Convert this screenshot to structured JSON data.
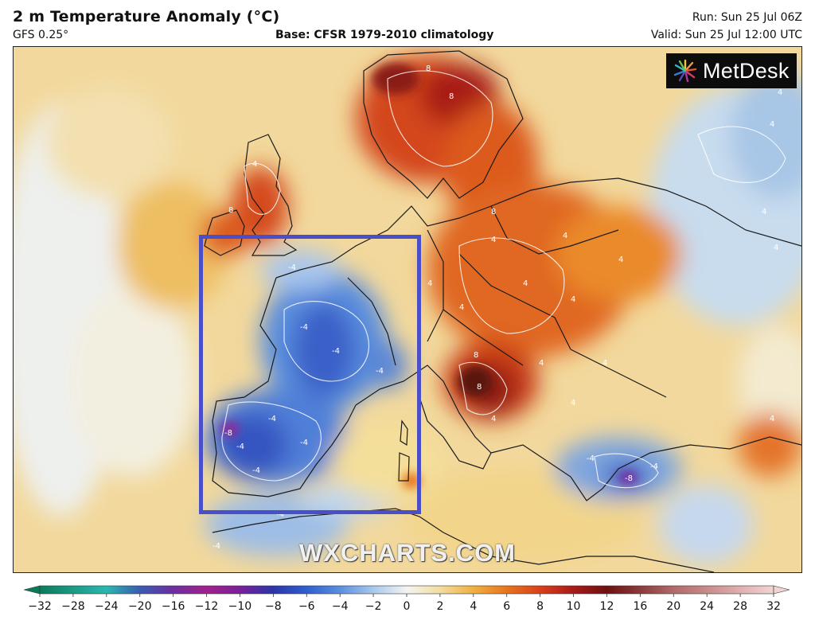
{
  "header": {
    "title": "2 m Temperature Anomaly (°C)",
    "model": "GFS 0.25°",
    "base": "Base: CFSR 1979-2010 climatology",
    "run": "Run: Sun 25 Jul 06Z",
    "valid": "Valid: Sun 25 Jul 12:00 UTC"
  },
  "logo": {
    "text": "MetDesk"
  },
  "watermark": "WXCHARTS.COM",
  "map": {
    "highlight_box_color": "#4b4fc7",
    "contour_labels": [
      "8",
      "8",
      "8",
      "8",
      "4",
      "4",
      "4",
      "4",
      "8",
      "4",
      "4",
      "4",
      "4",
      "4",
      "8",
      "4",
      "4",
      "4",
      "4",
      "-4",
      "-4",
      "-4",
      "-4",
      "-4",
      "-4",
      "-8",
      "-4",
      "-4",
      "-4",
      "-4",
      "-4",
      "-4",
      "-8",
      "4",
      "4",
      "4",
      "4"
    ]
  },
  "color_scale": {
    "ticks": [
      "−32",
      "−28",
      "−24",
      "−20",
      "−16",
      "−12",
      "−10",
      "−8",
      "−6",
      "−4",
      "−2",
      "0",
      "2",
      "4",
      "6",
      "8",
      "10",
      "12",
      "16",
      "20",
      "24",
      "28",
      "32"
    ],
    "colors": [
      "#0c7a5a",
      "#1a9b86",
      "#2ab7b0",
      "#3a5bb0",
      "#6b2fa0",
      "#a0208c",
      "#7a1f9a",
      "#2a35a8",
      "#2f5fcf",
      "#5a8fe0",
      "#a8c8ec",
      "#f4f4f2",
      "#f3dca0",
      "#f0b040",
      "#e8741e",
      "#d8401a",
      "#a81a18",
      "#6e1010",
      "#8a3a3a",
      "#b06a6a",
      "#c98a8a",
      "#e0b0b0",
      "#f0d4d4"
    ]
  }
}
